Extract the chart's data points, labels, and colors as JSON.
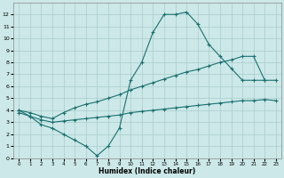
{
  "xlabel": "Humidex (Indice chaleur)",
  "xlim": [
    -0.5,
    23.5
  ],
  "ylim": [
    0,
    13
  ],
  "yticks": [
    0,
    1,
    2,
    3,
    4,
    5,
    6,
    7,
    8,
    9,
    10,
    11,
    12
  ],
  "xticks": [
    0,
    1,
    2,
    3,
    4,
    5,
    6,
    7,
    8,
    9,
    10,
    11,
    12,
    13,
    14,
    15,
    16,
    17,
    18,
    19,
    20,
    21,
    22,
    23
  ],
  "bg_color": "#cce8e8",
  "grid_color": "#aacccc",
  "line_color": "#1a7070",
  "line1_x": [
    0,
    1,
    2,
    3,
    4,
    5,
    6,
    7,
    8,
    9,
    10,
    11,
    12,
    13,
    14,
    15,
    16,
    17,
    18,
    19,
    20,
    21,
    22
  ],
  "line1_y": [
    4.0,
    3.5,
    2.8,
    2.5,
    2.0,
    1.5,
    1.0,
    0.2,
    1.0,
    2.5,
    6.5,
    8.0,
    10.5,
    12.0,
    12.0,
    12.2,
    11.2,
    9.5,
    8.5,
    7.5,
    6.5,
    6.5,
    6.5
  ],
  "line2_x": [
    0,
    1,
    2,
    3,
    4,
    5,
    6,
    7,
    8,
    9,
    10,
    11,
    12,
    13,
    14,
    15,
    16,
    17,
    18,
    19,
    20,
    21,
    22,
    23
  ],
  "line2_y": [
    4.0,
    3.8,
    3.5,
    3.3,
    3.8,
    4.2,
    4.5,
    4.7,
    5.0,
    5.3,
    5.7,
    6.0,
    6.3,
    6.6,
    6.9,
    7.2,
    7.4,
    7.7,
    8.0,
    8.2,
    8.5,
    8.5,
    6.5,
    6.5
  ],
  "line3_x": [
    0,
    1,
    2,
    3,
    4,
    5,
    6,
    7,
    8,
    9,
    10,
    11,
    12,
    13,
    14,
    15,
    16,
    17,
    18,
    19,
    20,
    21,
    22,
    23
  ],
  "line3_y": [
    3.8,
    3.5,
    3.2,
    3.0,
    3.1,
    3.2,
    3.3,
    3.4,
    3.5,
    3.6,
    3.8,
    3.9,
    4.0,
    4.1,
    4.2,
    4.3,
    4.4,
    4.5,
    4.6,
    4.7,
    4.8,
    4.8,
    4.9,
    4.8
  ]
}
